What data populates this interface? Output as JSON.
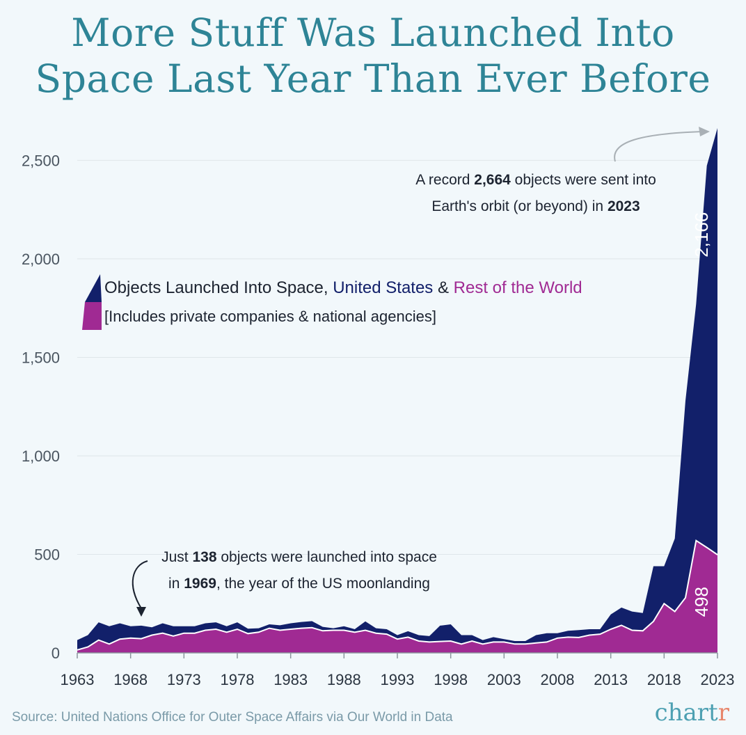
{
  "title_line1": "More Stuff Was Launched Into",
  "title_line2": "Space Last Year Than Ever Before",
  "legend": {
    "prefix": "Objects Launched Into Space, ",
    "us": "United States",
    "amp": " & ",
    "row": "Rest of the World",
    "sub": "[Includes private companies & national agencies]"
  },
  "annotation_2023": {
    "pre1": "A record ",
    "num": "2,664",
    "post1": " objects were sent into",
    "pre2": "Earth's orbit (or beyond) in ",
    "year": "2023"
  },
  "annotation_1969": {
    "pre1": "Just ",
    "num": "138",
    "post1": " objects were launched into space",
    "pre2": "in ",
    "year": "1969",
    "post2": ", the year of the US moonlanding"
  },
  "source": "Source: United Nations Office for Outer Space Affairs via Our World in Data",
  "logo_main": "chart",
  "logo_end": "r",
  "colors": {
    "us": "#12206a",
    "row": "#a02a93",
    "title": "#2e8496",
    "background": "#f2f8fb"
  },
  "chart_data": {
    "type": "area",
    "stacked": true,
    "title": "More Stuff Was Launched Into Space Last Year Than Ever Before",
    "xlabel": "",
    "ylabel": "",
    "ylim": [
      0,
      2664
    ],
    "yticks": [
      0,
      500,
      1000,
      1500,
      2000,
      2500
    ],
    "ytick_labels": [
      "0",
      "500",
      "1,000",
      "1,500",
      "2,000",
      "2,500"
    ],
    "xticks": [
      1963,
      1968,
      1973,
      1978,
      1983,
      1988,
      1993,
      1998,
      2003,
      2008,
      2013,
      2018,
      2023
    ],
    "grid": true,
    "x": [
      1963,
      1964,
      1965,
      1966,
      1967,
      1968,
      1969,
      1970,
      1971,
      1972,
      1973,
      1974,
      1975,
      1976,
      1977,
      1978,
      1979,
      1980,
      1981,
      1982,
      1983,
      1984,
      1985,
      1986,
      1987,
      1988,
      1989,
      1990,
      1991,
      1992,
      1993,
      1994,
      1995,
      1996,
      1997,
      1998,
      1999,
      2000,
      2001,
      2002,
      2003,
      2004,
      2005,
      2006,
      2007,
      2008,
      2009,
      2010,
      2011,
      2012,
      2013,
      2014,
      2015,
      2016,
      2017,
      2018,
      2019,
      2020,
      2021,
      2022,
      2023
    ],
    "series": [
      {
        "name": "Rest of the World",
        "values": [
          15,
          30,
          65,
          45,
          70,
          75,
          72,
          90,
          100,
          85,
          100,
          100,
          115,
          120,
          105,
          120,
          98,
          105,
          125,
          115,
          120,
          125,
          128,
          112,
          115,
          115,
          105,
          115,
          100,
          95,
          70,
          80,
          60,
          55,
          58,
          60,
          45,
          60,
          45,
          55,
          55,
          45,
          45,
          50,
          55,
          75,
          80,
          78,
          90,
          95,
          120,
          140,
          115,
          112,
          160,
          250,
          210,
          280,
          570,
          535,
          498
        ],
        "label": "498"
      },
      {
        "name": "United States",
        "values": [
          50,
          60,
          90,
          90,
          80,
          60,
          66,
          40,
          50,
          50,
          35,
          35,
          35,
          35,
          30,
          35,
          25,
          20,
          20,
          25,
          30,
          32,
          33,
          20,
          10,
          20,
          15,
          45,
          25,
          25,
          20,
          30,
          30,
          30,
          80,
          85,
          45,
          30,
          20,
          25,
          15,
          15,
          15,
          40,
          45,
          25,
          32,
          38,
          30,
          25,
          75,
          90,
          95,
          90,
          280,
          190,
          370,
          1000,
          1200,
          1938,
          2166
        ],
        "label": "2,166"
      }
    ],
    "annotations": [
      "A record 2,664 objects were sent into Earth's orbit (or beyond) in 2023",
      "Just 138 objects were launched into space in 1969, the year of the US moonlanding"
    ]
  }
}
